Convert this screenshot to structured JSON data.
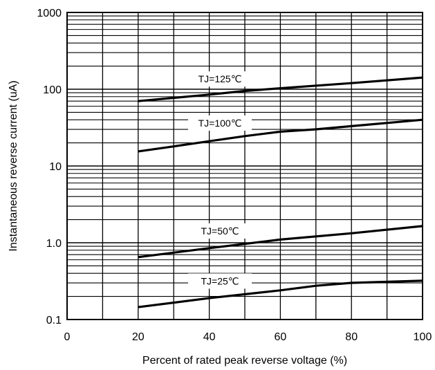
{
  "chart_data": {
    "type": "line",
    "xlabel": "Percent of rated peak reverse voltage (%)",
    "ylabel": "Instantaneous reverse current (uA)",
    "xlim": [
      0,
      100
    ],
    "ylim": [
      0.1,
      1000
    ],
    "yscale": "log",
    "grid": true,
    "x_ticks": [
      0,
      20,
      40,
      60,
      80,
      100
    ],
    "x_tick_labels": [
      "0",
      "20",
      "40",
      "60",
      "80",
      "100"
    ],
    "y_ticks": [
      0.1,
      1,
      10,
      100,
      1000
    ],
    "y_tick_labels": [
      "0.1",
      "1.0",
      "10",
      "100",
      "1000"
    ],
    "series": [
      {
        "name": "TJ=125℃",
        "x": [
          20,
          40,
          50,
          60,
          80,
          100
        ],
        "y": [
          70,
          85,
          95,
          103,
          120,
          142
        ]
      },
      {
        "name": "TJ=100℃",
        "x": [
          20,
          30,
          40,
          50,
          60,
          70,
          80,
          100
        ],
        "y": [
          15.5,
          18,
          21,
          24.5,
          28,
          30,
          33,
          40
        ]
      },
      {
        "name": "TJ=50℃",
        "x": [
          20,
          40,
          60,
          80,
          100
        ],
        "y": [
          0.65,
          0.85,
          1.1,
          1.33,
          1.65
        ]
      },
      {
        "name": "TJ=25℃",
        "x": [
          20,
          40,
          60,
          70,
          80,
          100
        ],
        "y": [
          0.145,
          0.19,
          0.24,
          0.275,
          0.3,
          0.32
        ]
      }
    ]
  }
}
